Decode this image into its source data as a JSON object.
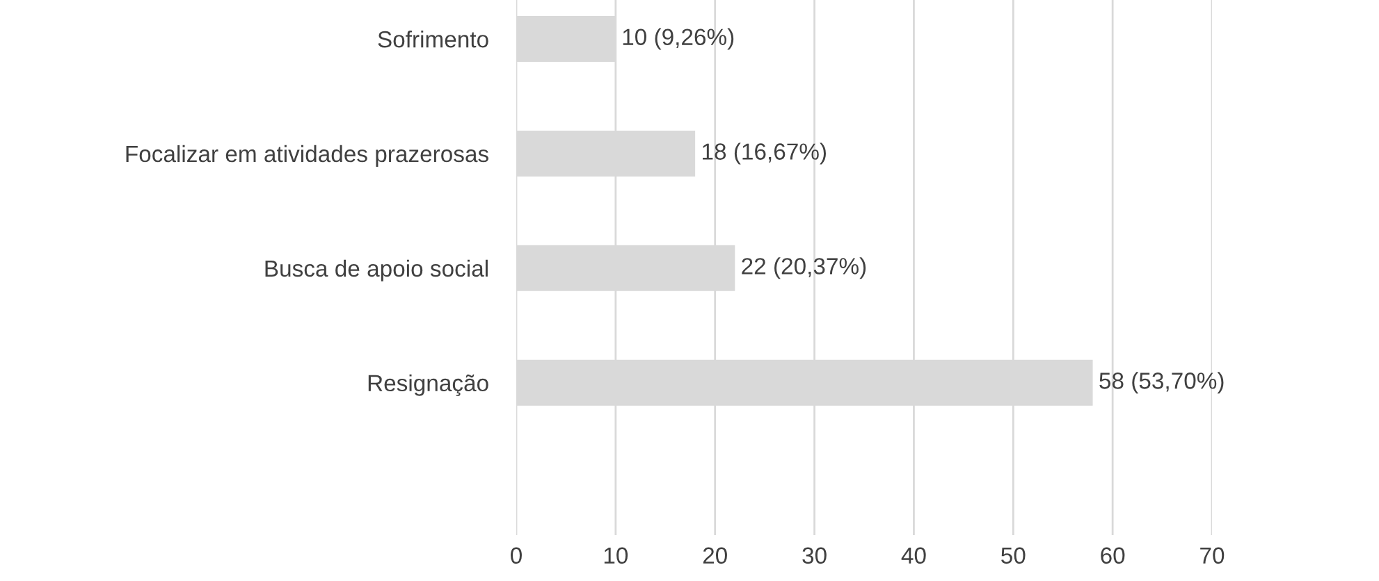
{
  "chart_data": {
    "type": "bar",
    "orientation": "horizontal",
    "categories": [
      "Sofrimento",
      "Focalizar em atividades prazerosas",
      "Busca de apoio social",
      "Resignação"
    ],
    "values": [
      10,
      18,
      22,
      58
    ],
    "value_labels": [
      "10 (9,26%)",
      "18 (16,67%)",
      "22 (20,37%)",
      "58 (53,70%)"
    ],
    "color": "#d9d9d9",
    "xlim": [
      0,
      70
    ],
    "xticks": [
      0,
      10,
      20,
      30,
      40,
      50,
      60,
      70
    ],
    "grid": "x"
  }
}
